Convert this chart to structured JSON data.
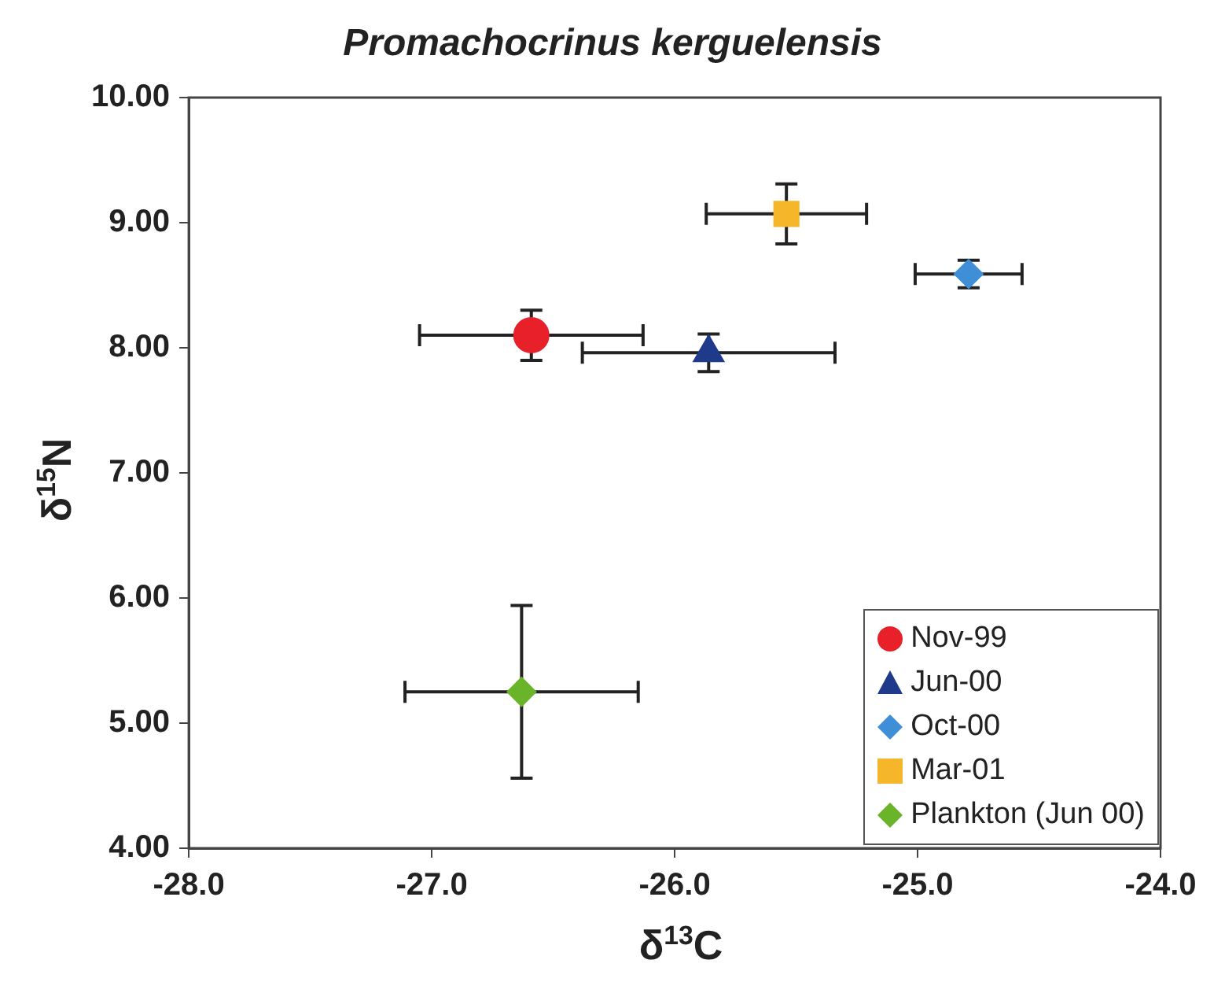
{
  "chart_data": {
    "type": "scatter",
    "title": "Promachocrinus kerguelensis",
    "xlabel": "δ$^{13}$C",
    "ylabel": "δ$^{15}$N",
    "xlim": [
      -28,
      -24
    ],
    "xticks": [
      {
        "value": -28,
        "label": "-28.0"
      },
      {
        "value": -27,
        "label": "-27.0"
      },
      {
        "value": -26,
        "label": "-26.0"
      },
      {
        "value": -25,
        "label": "-25.0"
      },
      {
        "value": -24,
        "label": "-24.0"
      }
    ],
    "ylim": [
      4,
      10
    ],
    "yticks": [
      {
        "value": 4,
        "label": "4.00"
      },
      {
        "value": 5,
        "label": "5.00"
      },
      {
        "value": 6,
        "label": "6.00"
      },
      {
        "value": 7,
        "label": "7.00"
      },
      {
        "value": 8,
        "label": "8.00"
      },
      {
        "value": 9,
        "label": "9.00"
      },
      {
        "value": 10,
        "label": "10.00"
      }
    ],
    "grid": false,
    "legend": "bottom right",
    "series": [
      {
        "name": "Nov-99",
        "color": "#e8202a",
        "marker": "circle",
        "x": [
          -26.59
        ],
        "values": [
          8.1
        ],
        "errors": [
          0.2
        ],
        "xerrors": [
          0.46
        ]
      },
      {
        "name": "Jun-00",
        "color": "#1f3a8a",
        "marker": "triangle",
        "x": [
          -25.86
        ],
        "values": [
          7.96
        ],
        "errors": [
          0.15
        ],
        "xerrors": [
          0.52
        ]
      },
      {
        "name": "Oct-00",
        "color": "#3f8fd8",
        "marker": "diamond",
        "x": [
          -24.79
        ],
        "values": [
          8.59
        ],
        "errors": [
          0.11
        ],
        "xerrors": [
          0.22
        ]
      },
      {
        "name": "Mar-01",
        "color": "#f5b62a",
        "marker": "square",
        "x": [
          -25.54
        ],
        "values": [
          9.07
        ],
        "errors": [
          0.24
        ],
        "xerrors": [
          0.33
        ]
      },
      {
        "name": "Plankton (Jun 00)",
        "color": "#6ab42a",
        "marker": "diamond",
        "x": [
          -26.63
        ],
        "values": [
          5.25
        ],
        "errors": [
          0.69
        ],
        "xerrors": [
          0.48
        ]
      }
    ]
  }
}
